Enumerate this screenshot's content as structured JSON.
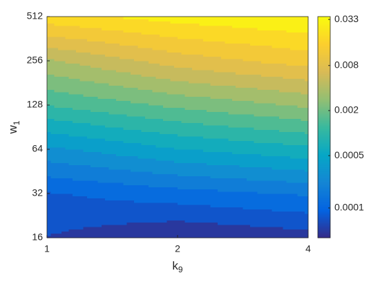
{
  "chart_data": {
    "type": "contour",
    "x": [
      1,
      2,
      4
    ],
    "y": [
      16,
      32,
      64,
      128,
      256,
      512
    ],
    "z": [
      [
        6e-05,
        4e-05,
        5e-05
      ],
      [
        9e-05,
        0.00012,
        0.00015
      ],
      [
        0.0003,
        0.0005,
        0.0007
      ],
      [
        0.0012,
        0.002,
        0.003
      ],
      [
        0.004,
        0.008,
        0.012
      ],
      [
        0.02,
        0.028,
        0.035
      ]
    ],
    "xlim": [
      1,
      4
    ],
    "xticks": [
      1,
      2,
      4
    ],
    "xlog": true,
    "ylim": [
      16,
      512
    ],
    "yticks": [
      16,
      32,
      64,
      128,
      256,
      512
    ],
    "ylog": true,
    "xlabel": {
      "text": "k",
      "subscript": "9"
    },
    "ylabel": {
      "text": "w",
      "subscript": "1"
    },
    "colorbar": {
      "lim": [
        4e-05,
        0.036
      ],
      "ticks": [
        0.0001,
        0.0005,
        0.002,
        0.008,
        0.033
      ],
      "log": true,
      "colormap": "parula"
    }
  }
}
